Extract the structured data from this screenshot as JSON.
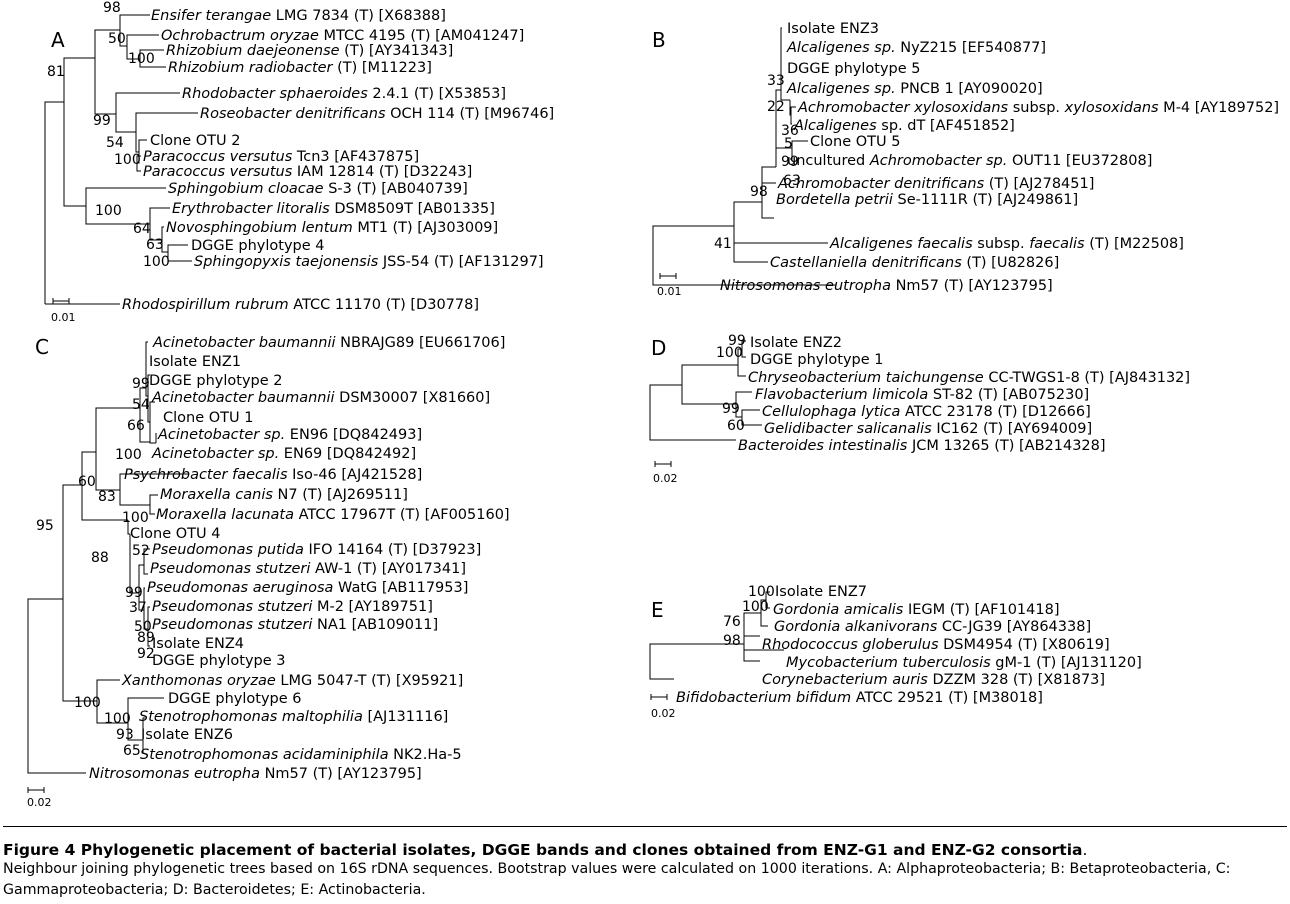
{
  "panels": [
    {
      "letter": "A",
      "scale": "0.01",
      "taxa": [
        {
          "id": "A1",
          "name": "Ensifer terangae",
          "rest": " LMG 7834 (T) [X68388]"
        },
        {
          "id": "A2",
          "name": "Ochrobactrum oryzae",
          "rest": " MTCC 4195  (T) [AM041247]"
        },
        {
          "id": "A3",
          "name": "Rhizobium daejeonense",
          "rest": " (T) [AY341343]"
        },
        {
          "id": "A4",
          "name": "Rhizobium radiobacter",
          "rest": " (T) [M11223]"
        },
        {
          "id": "A5",
          "name": "Rhodobacter sphaeroides",
          "rest": " 2.4.1 (T) [X53853]"
        },
        {
          "id": "A6",
          "name": "Roseobacter denitrificans",
          "rest": " OCH 114 (T) [M96746]"
        },
        {
          "id": "A7",
          "plain": "Clone OTU 2"
        },
        {
          "id": "A8",
          "name": "Paracoccus versutus",
          "rest": " Tcn3 [AF437875]"
        },
        {
          "id": "A9",
          "name": "Paracoccus versutus",
          "rest": " IAM 12814 (T) [D32243]"
        },
        {
          "id": "A10",
          "name": "Sphingobium cloacae",
          "rest": " S-3 (T) [AB040739]"
        },
        {
          "id": "A11",
          "name": "Erythrobacter litoralis",
          "rest": " DSM8509T [AB01335]"
        },
        {
          "id": "A12",
          "name": "Novosphingobium lentum",
          "rest": " MT1 (T) [AJ303009]"
        },
        {
          "id": "A13",
          "plain": "DGGE phylotype 4"
        },
        {
          "id": "A14",
          "name": "Sphingopyxis taejonensis",
          "rest": " JSS-54 (T) [AF131297]"
        },
        {
          "id": "A15",
          "name": "Rhodospirillum rubrum",
          "rest": " ATCC 11170 (T) [D30778]"
        }
      ],
      "bootstraps": [
        "98",
        "50",
        "100",
        "81",
        "99",
        "54",
        "100",
        "100",
        "64",
        "63",
        "100"
      ]
    },
    {
      "letter": "B",
      "scale": "0.01",
      "taxa": [
        {
          "id": "B1",
          "plain": "Isolate ENZ3"
        },
        {
          "id": "B2",
          "name": "Alcaligenes sp.",
          "rest": " NyZ215 [EF540877]"
        },
        {
          "id": "B3",
          "plain": "DGGE phylotype 5"
        },
        {
          "id": "B4",
          "name": "Alcaligenes sp.",
          "rest": " PNCB 1 [AY090020]"
        },
        {
          "id": "B5",
          "name": "Achromobacter xylosoxidans",
          "rest": " subsp. ",
          "name2": "xylosoxidans",
          "rest2": " M-4 [AY189752]"
        },
        {
          "id": "B6",
          "name": "Alcaligenes",
          "rest": " sp. dT [AF451852]"
        },
        {
          "id": "B7",
          "plain": "Clone OTU 5"
        },
        {
          "id": "B8",
          "plain": "uncultured ",
          "name": "Achromobacter sp.",
          "rest": " OUT11 [EU372808]"
        },
        {
          "id": "B9",
          "name": "Achromobacter denitrificans",
          "rest": " (T) [AJ278451]"
        },
        {
          "id": "B10",
          "name": "Bordetella petrii",
          "rest": " Se-1111R (T) [AJ249861]"
        },
        {
          "id": "B11",
          "name": "Alcaligenes faecalis",
          "rest": " subsp. ",
          "name2": "faecalis",
          "rest2": " (T) [M22508]"
        },
        {
          "id": "B12",
          "name": "Castellaniella denitrificans",
          "rest": " (T) [U82826]"
        },
        {
          "id": "B13",
          "name": "Nitrosomonas eutropha",
          "rest": " Nm57 (T) [AY123795]"
        }
      ],
      "bootstraps": [
        "33",
        "22",
        "36",
        "5",
        "99",
        "63",
        "98",
        "41"
      ]
    },
    {
      "letter": "C",
      "scale": "0.02",
      "taxa": [
        {
          "id": "C1",
          "name": "Acinetobacter baumannii",
          "rest": " NBRAJG89 [EU661706]"
        },
        {
          "id": "C2",
          "plain": "Isolate ENZ1"
        },
        {
          "id": "C3",
          "plain": "DGGE phylotype 2"
        },
        {
          "id": "C4",
          "name": "Acinetobacter baumannii",
          "rest": " DSM30007 [X81660]"
        },
        {
          "id": "C5",
          "plain": "Clone OTU 1"
        },
        {
          "id": "C6",
          "name": "Acinetobacter sp.",
          "rest": " EN96 [DQ842493]"
        },
        {
          "id": "C7",
          "name": "Acinetobacter sp.",
          "rest": " EN69 [DQ842492]"
        },
        {
          "id": "C8",
          "name": "Psychrobacter faecalis",
          "rest": " Iso-46 [AJ421528]"
        },
        {
          "id": "C9",
          "name": "Moraxella canis",
          "rest": " N7 (T) [AJ269511]"
        },
        {
          "id": "C10",
          "name": "Moraxella lacunata",
          "rest": " ATCC 17967T (T) [AF005160]"
        },
        {
          "id": "C11",
          "plain": "Clone OTU 4"
        },
        {
          "id": "C12",
          "name": "Pseudomonas putida",
          "rest": " IFO 14164 (T) [D37923]"
        },
        {
          "id": "C13",
          "name": "Pseudomonas stutzeri",
          "rest": " AW-1 (T) [AY017341]"
        },
        {
          "id": "C14",
          "name": "Pseudomonas aeruginosa",
          "rest": " WatG [AB117953]"
        },
        {
          "id": "C15",
          "name": "Pseudomonas stutzeri",
          "rest": " M-2 [AY189751]"
        },
        {
          "id": "C16",
          "name": "Pseudomonas stutzeri",
          "rest": " NA1 [AB109011]"
        },
        {
          "id": "C17",
          "plain": "Isolate ENZ4"
        },
        {
          "id": "C18",
          "plain": "DGGE phylotype 3"
        },
        {
          "id": "C19",
          "name": "Xanthomonas oryzae",
          "rest": " LMG 5047-T (T) [X95921]"
        },
        {
          "id": "C20",
          "plain": "DGGE phylotype 6"
        },
        {
          "id": "C21",
          "name": "Stenotrophomonas maltophilia",
          "rest": " [AJ131116]"
        },
        {
          "id": "C22",
          "plain": "Isolate ENZ6"
        },
        {
          "id": "C23",
          "name": "Stenotrophomonas acidaminiphila",
          "rest": " NK2.Ha-5"
        },
        {
          "id": "C24",
          "name": "Nitrosomonas eutropha",
          "rest": " Nm57 (T) [AY123795]"
        }
      ],
      "bootstraps": [
        "99",
        "54",
        "66",
        "100",
        "60",
        "83",
        "100",
        "95",
        "88",
        "52",
        "99",
        "37",
        "50",
        "89",
        "92",
        "100",
        "100",
        "93",
        "65"
      ]
    },
    {
      "letter": "D",
      "scale": "0.02",
      "taxa": [
        {
          "id": "D1",
          "plain": "Isolate ENZ2"
        },
        {
          "id": "D2",
          "plain": "DGGE phylotype 1"
        },
        {
          "id": "D3",
          "name": "Chryseobacterium taichungense",
          "rest": " CC-TWGS1-8 (T) [AJ843132]"
        },
        {
          "id": "D4",
          "name": "Flavobacterium limicola",
          "rest": " ST-82 (T) [AB075230]"
        },
        {
          "id": "D5",
          "name": "Cellulophaga lytica",
          "rest": " ATCC 23178 (T) [D12666]"
        },
        {
          "id": "D6",
          "name": "Gelidibacter salicanalis",
          "rest": " IC162 (T) [AY694009]"
        },
        {
          "id": "D7",
          "name": "Bacteroides intestinalis",
          "rest": " JCM 13265 (T) [AB214328]"
        }
      ],
      "bootstraps": [
        "99",
        "100",
        "99",
        "60"
      ]
    },
    {
      "letter": "E",
      "scale": "0.02",
      "taxa": [
        {
          "id": "E1",
          "plain": "Isolate ENZ7"
        },
        {
          "id": "E2",
          "name": "Gordonia amicalis",
          "rest": " IEGM (T) [AF101418]"
        },
        {
          "id": "E3",
          "name": "Gordonia alkanivorans",
          "rest": " CC-JG39 [AY864338]"
        },
        {
          "id": "E4",
          "name": "Rhodococcus globerulus",
          "rest": " DSM4954 (T) [X80619]"
        },
        {
          "id": "E5",
          "name": "Mycobacterium tuberculosis",
          "rest": " gM-1 (T) [AJ131120]"
        },
        {
          "id": "E6",
          "name": "Corynebacterium auris",
          "rest": " DZZM 328 (T) [X81873]"
        },
        {
          "id": "E7",
          "name": "Bifidobacterium bifidum",
          "rest": " ATCC 29521 (T) [M38018]"
        }
      ],
      "bootstraps": [
        "100",
        "100",
        "76",
        "98"
      ]
    }
  ],
  "caption": {
    "title": "Figure 4 Phylogenetic placement of bacterial isolates, DGGE bands and clones obtained from ENZ-G1 and ENZ-G2 consortia",
    "title_end": ".",
    "body": "Neighbour joining phylogenetic trees based on 16S rDNA sequences. Bootstrap values were calculated on 1000 iterations. A: Alphaproteobacteria; B: Betaproteobacteria, C: Gammaproteobacteria; D: Bacteroidetes; E: Actinobacteria."
  }
}
